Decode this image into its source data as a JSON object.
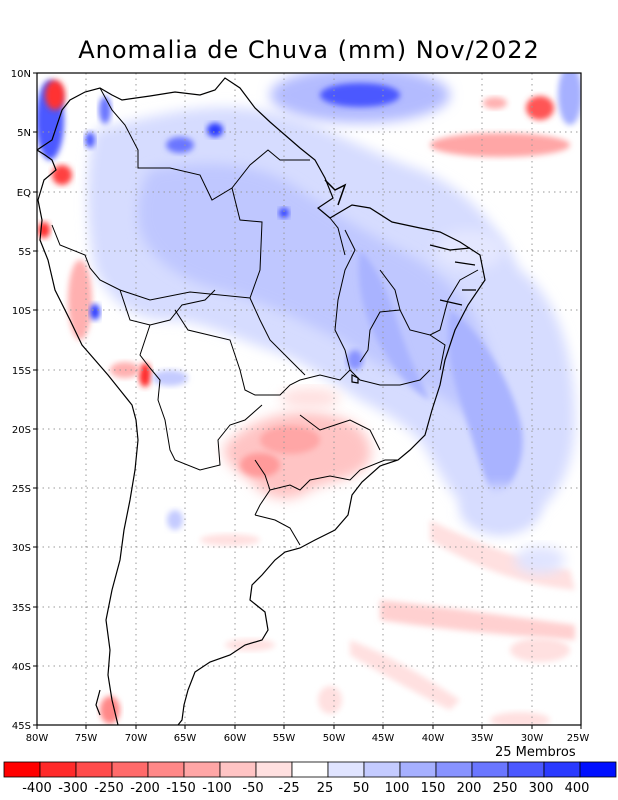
{
  "title": "Anomalia de Chuva (mm) Nov/2022",
  "members_label": "25 Membros",
  "map": {
    "lat_labels": [
      "10N",
      "5N",
      "EQ",
      "5S",
      "10S",
      "15S",
      "20S",
      "25S",
      "30S",
      "35S",
      "40S",
      "45S"
    ],
    "lon_labels": [
      "80W",
      "75W",
      "70W",
      "65W",
      "60W",
      "55W",
      "50W",
      "45W",
      "40W",
      "35W",
      "30W",
      "25W"
    ]
  },
  "colorbar": {
    "labels": [
      "-400",
      "-300",
      "-250",
      "-200",
      "-150",
      "-100",
      "-50",
      "-25",
      "25",
      "50",
      "100",
      "150",
      "200",
      "250",
      "300",
      "400"
    ],
    "colors": [
      "#ff0000",
      "#ff2a2a",
      "#ff4b4b",
      "#ff6a6a",
      "#ff8888",
      "#ffa6a6",
      "#ffc4c4",
      "#ffe0e0",
      "#ffffff",
      "#e0e4ff",
      "#c4cbff",
      "#a6b0ff",
      "#8893ff",
      "#6a76ff",
      "#4b58ff",
      "#2a3aff",
      "#0010ff"
    ]
  }
}
